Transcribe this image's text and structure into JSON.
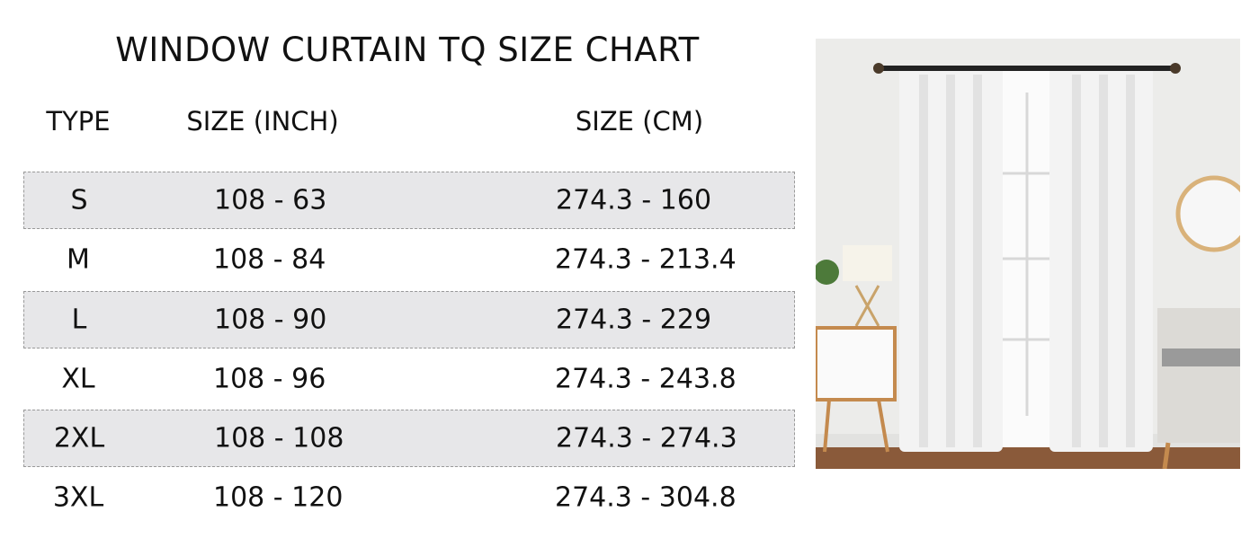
{
  "title": "WINDOW CURTAIN TQ SIZE CHART",
  "headers": {
    "type": "TYPE",
    "inch": "SIZE (INCH)",
    "cm": "SIZE (CM)"
  },
  "rows": [
    {
      "type": "S",
      "inch": "108 - 63",
      "cm": "274.3 - 160"
    },
    {
      "type": "M",
      "inch": "108 - 84",
      "cm": "274.3 - 213.4"
    },
    {
      "type": "L",
      "inch": "108 - 90",
      "cm": "274.3 - 229"
    },
    {
      "type": "XL",
      "inch": "108 - 96",
      "cm": "274.3 - 243.8"
    },
    {
      "type": "2XL",
      "inch": "108 - 108",
      "cm": "274.3 - 274.3"
    },
    {
      "type": "3XL",
      "inch": "108 - 120",
      "cm": "274.3 - 304.8"
    }
  ],
  "colors": {
    "shaded_row": "#e7e7e9",
    "curtain": "#f1f1f1",
    "rod": "#222222"
  }
}
